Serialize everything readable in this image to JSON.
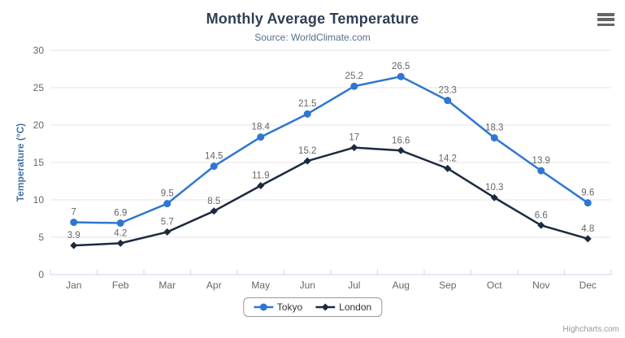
{
  "chart_data": {
    "type": "line",
    "title": "Monthly Average Temperature",
    "subtitle": "Source: WorldClimate.com",
    "categories": [
      "Jan",
      "Feb",
      "Mar",
      "Apr",
      "May",
      "Jun",
      "Jul",
      "Aug",
      "Sep",
      "Oct",
      "Nov",
      "Dec"
    ],
    "series": [
      {
        "name": "Tokyo",
        "color": "#2F76D1",
        "marker": "circle",
        "values": [
          7,
          6.9,
          9.5,
          14.5,
          18.4,
          21.5,
          25.2,
          26.5,
          23.3,
          18.3,
          13.9,
          9.6
        ]
      },
      {
        "name": "London",
        "color": "#1B2A3F",
        "marker": "diamond",
        "values": [
          3.9,
          4.2,
          5.7,
          8.5,
          11.9,
          15.2,
          17,
          16.6,
          14.2,
          10.3,
          6.6,
          4.8
        ]
      }
    ],
    "xlabel": "",
    "ylabel": "Temperature (°C)",
    "ylim": [
      0,
      30
    ],
    "ytick_interval": 5,
    "grid": true,
    "data_labels": true,
    "legend_position": "bottom"
  },
  "credits": "Highcharts.com",
  "menu": {
    "icon": "hamburger-icon"
  },
  "colors": {
    "title": "#2F3F55",
    "subtitle": "#53708E",
    "axis_title": "#4673A5",
    "axis_labels": "#666666",
    "data_labels": "#666666",
    "gridline": "#E6E6E6",
    "axis_line": "#CCD6EB",
    "legend_text": "#333333",
    "legend_border": "#999999",
    "credits_text": "#999999",
    "menu_icon": "#666666",
    "background": "#FFFFFF"
  }
}
